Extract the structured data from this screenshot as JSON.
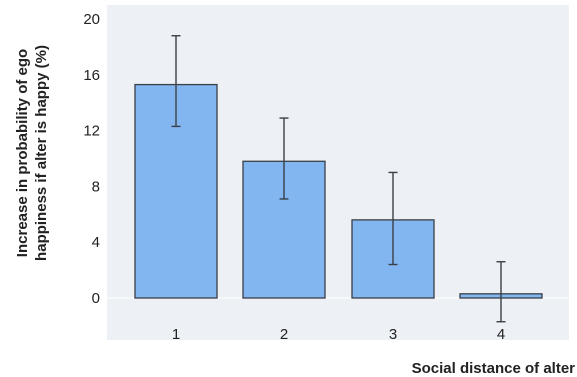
{
  "chart_data": {
    "type": "bar",
    "categories": [
      "1",
      "2",
      "3",
      "4"
    ],
    "values": [
      15.3,
      9.8,
      5.6,
      0.3
    ],
    "error_low": [
      12.3,
      7.1,
      2.4,
      -1.7
    ],
    "error_high": [
      18.8,
      12.9,
      9.0,
      2.6
    ],
    "ylim": [
      0,
      20
    ],
    "yticks": [
      "0",
      "4",
      "8",
      "12",
      "16",
      "20"
    ],
    "ylabel_line1": "Increase in probability of ego",
    "ylabel_line2": "happiness if alter is happy (%)",
    "xlabel": "Social distance of alter",
    "grid": false,
    "bar_color": "#82b6f1",
    "plot_bg_color": "#edf0f4"
  }
}
